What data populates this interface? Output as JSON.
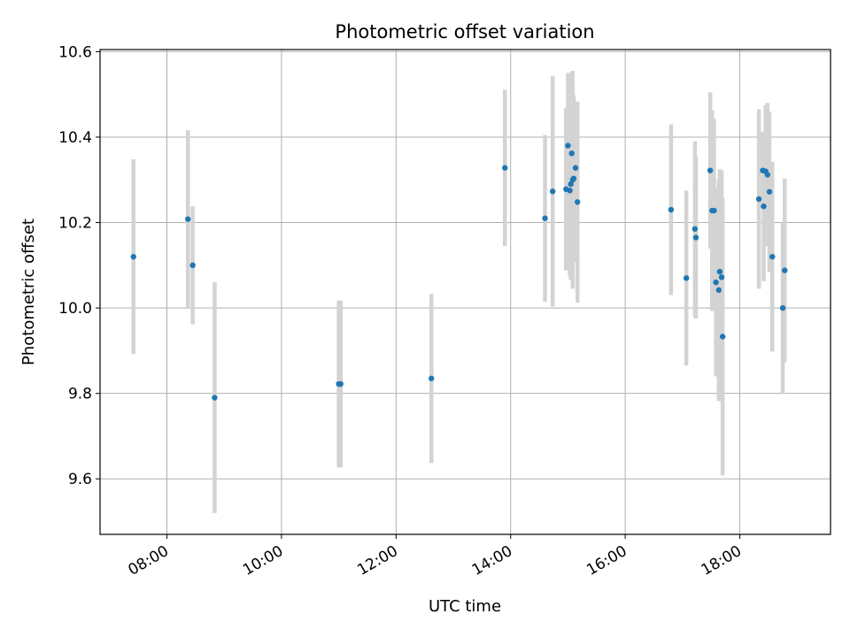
{
  "chart_data": {
    "type": "scatter",
    "title": "Photometric offset variation",
    "xlabel": "UTC time",
    "ylabel": "Photometric offset",
    "xlim": [
      "06:50",
      "19:35"
    ],
    "ylim": [
      9.47,
      10.605
    ],
    "grid": true,
    "x_ticks": [
      "08:00",
      "10:00",
      "12:00",
      "14:00",
      "16:00",
      "18:00"
    ],
    "y_ticks": [
      "9.6",
      "9.8",
      "10.0",
      "10.2",
      "10.4",
      "10.6"
    ],
    "colors": {
      "point": "#1f77b4",
      "errorbar": "#d3d3d3",
      "grid": "#b0b0b0"
    },
    "series": [
      {
        "points": [
          {
            "x": "07:25",
            "y": 10.12,
            "yerr": 0.228
          },
          {
            "x": "08:22",
            "y": 10.208,
            "yerr": 0.208
          },
          {
            "x": "08:27",
            "y": 10.1,
            "yerr": 0.138
          },
          {
            "x": "08:50",
            "y": 9.79,
            "yerr": 0.27
          },
          {
            "x": "11:00",
            "y": 9.822,
            "yerr": 0.195
          },
          {
            "x": "11:02",
            "y": 9.822,
            "yerr": 0.195
          },
          {
            "x": "12:37",
            "y": 9.835,
            "yerr": 0.198
          },
          {
            "x": "13:54",
            "y": 10.328,
            "yerr": 0.183
          },
          {
            "x": "14:36",
            "y": 10.21,
            "yerr": 0.195
          },
          {
            "x": "14:44",
            "y": 10.273,
            "yerr": 0.27
          },
          {
            "x": "14:58",
            "y": 10.278,
            "yerr": 0.19
          },
          {
            "x": "15:00",
            "y": 10.38,
            "yerr": 0.17
          },
          {
            "x": "15:02",
            "y": 10.275,
            "yerr": 0.2
          },
          {
            "x": "15:03",
            "y": 10.29,
            "yerr": 0.225
          },
          {
            "x": "15:04",
            "y": 10.362,
            "yerr": 0.19
          },
          {
            "x": "15:05",
            "y": 10.3,
            "yerr": 0.255
          },
          {
            "x": "15:06",
            "y": 10.303,
            "yerr": 0.195
          },
          {
            "x": "15:08",
            "y": 10.328,
            "yerr": 0.155
          },
          {
            "x": "15:10",
            "y": 10.248,
            "yerr": 0.235
          },
          {
            "x": "16:48",
            "y": 10.23,
            "yerr": 0.2
          },
          {
            "x": "17:04",
            "y": 10.07,
            "yerr": 0.205
          },
          {
            "x": "17:13",
            "y": 10.185,
            "yerr": 0.205
          },
          {
            "x": "17:14",
            "y": 10.165,
            "yerr": 0.19
          },
          {
            "x": "17:29",
            "y": 10.322,
            "yerr": 0.183
          },
          {
            "x": "17:31",
            "y": 10.228,
            "yerr": 0.235
          },
          {
            "x": "17:33",
            "y": 10.228,
            "yerr": 0.215
          },
          {
            "x": "17:35",
            "y": 10.06,
            "yerr": 0.22
          },
          {
            "x": "17:38",
            "y": 10.042,
            "yerr": 0.26
          },
          {
            "x": "17:39",
            "y": 10.085,
            "yerr": 0.24
          },
          {
            "x": "17:41",
            "y": 10.072,
            "yerr": 0.25
          },
          {
            "x": "17:42",
            "y": 9.933,
            "yerr": 0.325
          },
          {
            "x": "18:20",
            "y": 10.255,
            "yerr": 0.21
          },
          {
            "x": "18:24",
            "y": 10.322,
            "yerr": 0.09
          },
          {
            "x": "18:25",
            "y": 10.238,
            "yerr": 0.175
          },
          {
            "x": "18:27",
            "y": 10.32,
            "yerr": 0.155
          },
          {
            "x": "18:29",
            "y": 10.312,
            "yerr": 0.168
          },
          {
            "x": "18:31",
            "y": 10.272,
            "yerr": 0.188
          },
          {
            "x": "18:34",
            "y": 10.12,
            "yerr": 0.222
          },
          {
            "x": "18:45",
            "y": 10.0,
            "yerr": 0.2
          },
          {
            "x": "18:47",
            "y": 10.088,
            "yerr": 0.215
          }
        ]
      }
    ]
  }
}
